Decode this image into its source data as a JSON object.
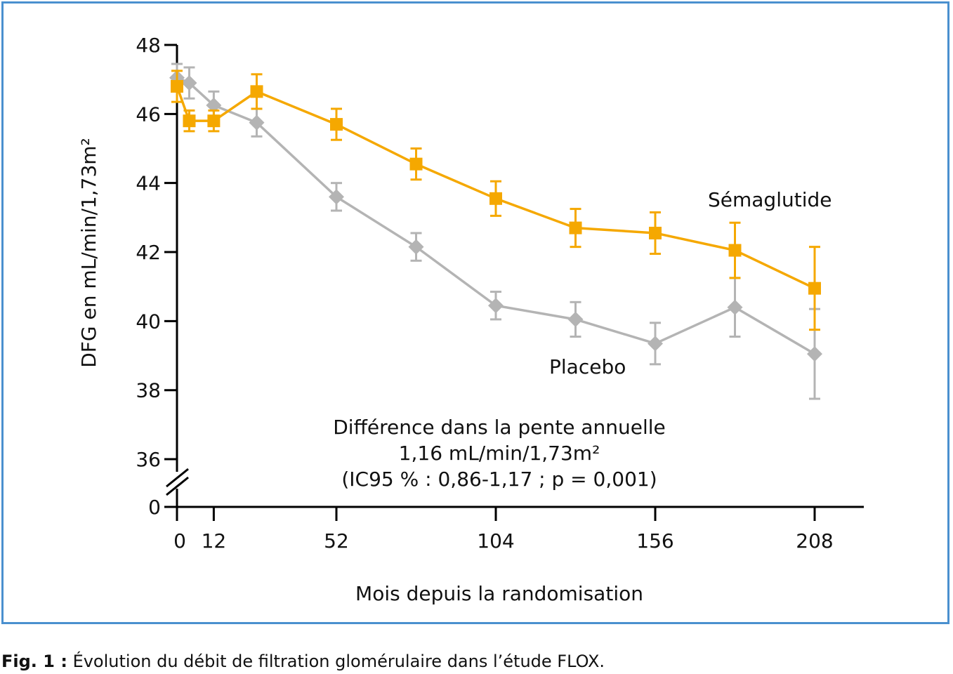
{
  "chart_data": {
    "type": "line",
    "xlabel": "Mois depuis la randomisation",
    "ylabel": "DFG en mL/min/1,73m²",
    "xlim": [
      0,
      208
    ],
    "ylim": [
      36,
      48
    ],
    "x_ticks": [
      0,
      12,
      52,
      104,
      156,
      208
    ],
    "y_ticks": [
      36,
      38,
      40,
      42,
      44,
      46,
      48
    ],
    "y_zero_label": "0",
    "axis_break": true,
    "grid": false,
    "colors": {
      "Sémaglutide": "#f5a800",
      "Placebo": "#b4b4b4"
    },
    "x": [
      0,
      4,
      12,
      26,
      52,
      78,
      104,
      130,
      156,
      182,
      208
    ],
    "series": [
      {
        "name": "Sémaglutide",
        "marker": "square",
        "values": [
          46.8,
          45.8,
          45.8,
          46.65,
          45.7,
          44.55,
          43.55,
          42.7,
          42.55,
          42.05,
          40.95
        ],
        "error": [
          0.45,
          0.3,
          0.3,
          0.5,
          0.45,
          0.45,
          0.5,
          0.55,
          0.6,
          0.8,
          1.2
        ]
      },
      {
        "name": "Placebo",
        "marker": "diamond",
        "values": [
          47.05,
          46.9,
          46.25,
          45.75,
          43.6,
          42.15,
          40.45,
          40.05,
          39.35,
          40.4,
          39.05
        ],
        "error": [
          0.4,
          0.45,
          0.4,
          0.4,
          0.4,
          0.4,
          0.4,
          0.5,
          0.6,
          0.85,
          1.3
        ]
      }
    ],
    "annotation": [
      "Différence dans la pente annuelle",
      "1,16 mL/min/1,73m²",
      "(IC95 % : 0,86-1,17 ; p = 0,001)"
    ]
  },
  "caption": {
    "label": "Fig. 1 :",
    "text": " Évolution du débit de filtration glomérulaire dans l’étude FLOX."
  }
}
